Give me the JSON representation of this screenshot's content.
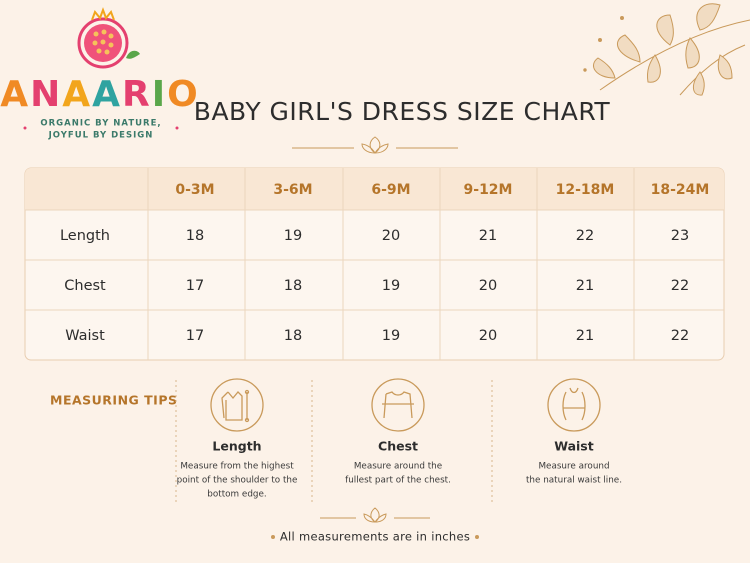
{
  "header": {
    "brand": "ANAARIO",
    "tagline": [
      "ORGANIC BY NATURE,",
      "JOYFUL BY DESIGN"
    ]
  },
  "title": "BABY GIRL'S DRESS SIZE CHART",
  "table": {
    "columns": [
      "0-3M",
      "3-6M",
      "6-9M",
      "9-12M",
      "12-18M",
      "18-24M"
    ],
    "rows": [
      {
        "label": "Length",
        "values": [
          18,
          19,
          20,
          21,
          22,
          23
        ]
      },
      {
        "label": "Chest",
        "values": [
          17,
          18,
          19,
          20,
          21,
          22
        ]
      },
      {
        "label": "Waist",
        "values": [
          17,
          18,
          19,
          20,
          21,
          22
        ]
      }
    ]
  },
  "tips": {
    "heading": "MEASURING TIPS",
    "items": [
      {
        "title": "Length",
        "description": [
          "Measure from the highest",
          "point of the shoulder to the",
          "bottom edge."
        ]
      },
      {
        "title": "Chest",
        "description": [
          "Measure around the",
          "fullest part of the chest."
        ]
      },
      {
        "title": "Waist",
        "description": [
          "Measure around",
          "the natural waist line."
        ]
      }
    ]
  },
  "footer": "All measurements are in inches"
}
